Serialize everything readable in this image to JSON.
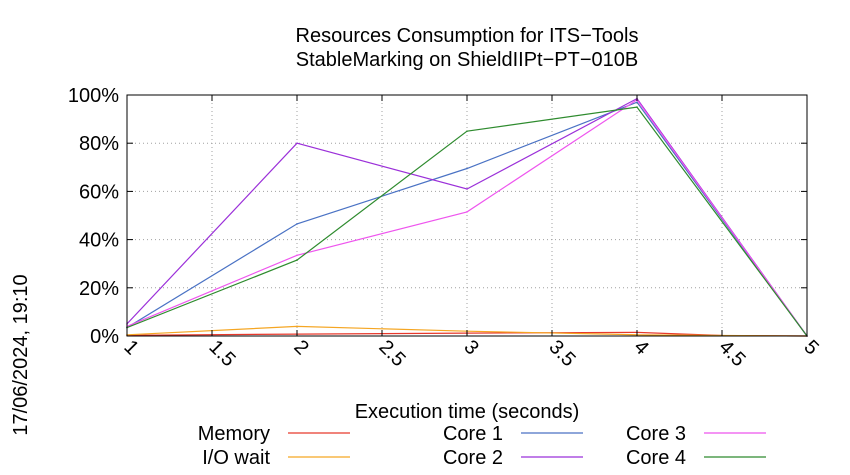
{
  "chart_data": {
    "type": "line",
    "title": [
      "Resources Consumption for ITS−Tools",
      "StableMarking on ShieldIIPt−PT−010B"
    ],
    "xlabel": "Execution time (seconds)",
    "ylabel": "",
    "side_label": "17/06/2024, 19:10",
    "xlim": [
      1,
      5
    ],
    "ylim": [
      0,
      100
    ],
    "x_ticks": [
      "1",
      "1.5",
      "2",
      "2.5",
      "3",
      "3.5",
      "4",
      "4.5",
      "5"
    ],
    "y_ticks": [
      "0%",
      "20%",
      "40%",
      "60%",
      "80%",
      "100%"
    ],
    "grid": true,
    "legend_position": "bottom",
    "series": [
      {
        "name": "Memory",
        "color": "#e8392c",
        "x": [
          1,
          2,
          3,
          4,
          4.5,
          5
        ],
        "y": [
          0.3,
          0.8,
          1.2,
          1.5,
          0.2,
          0
        ]
      },
      {
        "name": "I/O wait",
        "color": "#f5a623",
        "x": [
          1,
          2,
          3,
          4,
          4.5,
          5
        ],
        "y": [
          0.5,
          4,
          2,
          0.5,
          0.2,
          0
        ]
      },
      {
        "name": "Core 1",
        "color": "#4a72c4",
        "x": [
          1,
          2,
          3,
          4,
          5
        ],
        "y": [
          3.5,
          46.5,
          69.5,
          97,
          0
        ]
      },
      {
        "name": "Core 2",
        "color": "#9b30d9",
        "x": [
          1,
          2,
          3,
          4,
          5
        ],
        "y": [
          5,
          80,
          61,
          98.5,
          0
        ]
      },
      {
        "name": "Core 3",
        "color": "#ee55ee",
        "x": [
          1,
          2,
          3,
          4,
          5
        ],
        "y": [
          4,
          33.5,
          51.5,
          98,
          0
        ]
      },
      {
        "name": "Core 4",
        "color": "#2e8b2e",
        "x": [
          1,
          2,
          3,
          4,
          5
        ],
        "y": [
          3.5,
          31.5,
          85,
          95,
          0
        ]
      }
    ]
  }
}
